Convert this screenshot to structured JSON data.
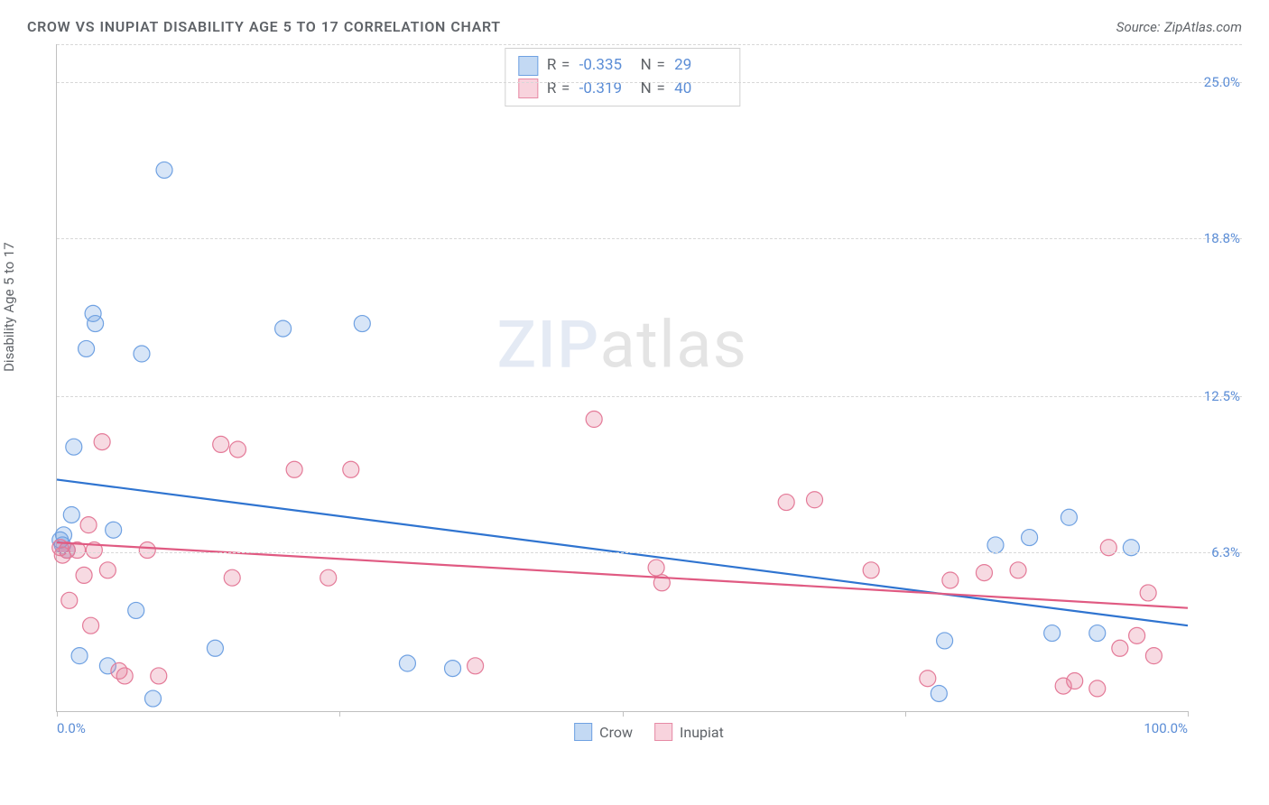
{
  "header": {
    "title": "CROW VS INUPIAT DISABILITY AGE 5 TO 17 CORRELATION CHART",
    "source": "Source: ZipAtlas.com"
  },
  "chart": {
    "type": "scatter",
    "yaxis_label": "Disability Age 5 to 17",
    "xlim": [
      0,
      100
    ],
    "ylim": [
      0,
      26.5
    ],
    "yticks": [
      {
        "v": 6.3,
        "label": "6.3%"
      },
      {
        "v": 12.5,
        "label": "12.5%"
      },
      {
        "v": 18.8,
        "label": "18.8%"
      },
      {
        "v": 25.0,
        "label": "25.0%"
      }
    ],
    "xticks_minor": [
      0,
      25,
      50,
      75,
      100
    ],
    "xticks_labeled": [
      {
        "v": 0,
        "label": "0.0%",
        "align": "left"
      },
      {
        "v": 100,
        "label": "100.0%",
        "align": "right"
      }
    ],
    "marker_radius": 9,
    "background_color": "#ffffff",
    "grid_color": "#d8d8d8",
    "axis_color": "#c0c0c0",
    "text_color": "#5f6368",
    "tick_label_color": "#5b8dd6"
  },
  "watermark": {
    "zip": "ZIP",
    "atlas": "atlas"
  },
  "legend_box": {
    "rows": [
      {
        "swatch_fill": "#c3d9f3",
        "swatch_stroke": "#6fa1e2",
        "r_label": "R =",
        "r_val": "-0.335",
        "n_label": "N =",
        "n_val": "29"
      },
      {
        "swatch_fill": "#f8d3dd",
        "swatch_stroke": "#e68aa5",
        "r_label": "R =",
        "r_val": "-0.319",
        "n_label": "N =",
        "n_val": "40"
      }
    ]
  },
  "bottom_legend": [
    {
      "swatch_fill": "#c3d9f3",
      "swatch_stroke": "#6fa1e2",
      "label": "Crow"
    },
    {
      "swatch_fill": "#f8d3dd",
      "swatch_stroke": "#e68aa5",
      "label": "Inupiat"
    }
  ],
  "series": [
    {
      "name": "Crow",
      "color_stroke": "#6fa1e2",
      "color_fill": "#6fa1e2",
      "trend_color": "#2f74d0",
      "trend": {
        "x1": 0,
        "y1": 9.2,
        "x2": 100,
        "y2": 3.4
      },
      "points": [
        {
          "x": 0.3,
          "y": 6.8
        },
        {
          "x": 0.5,
          "y": 6.6
        },
        {
          "x": 0.6,
          "y": 7.0
        },
        {
          "x": 0.9,
          "y": 6.4
        },
        {
          "x": 1.3,
          "y": 7.8
        },
        {
          "x": 1.5,
          "y": 10.5
        },
        {
          "x": 2.0,
          "y": 2.2
        },
        {
          "x": 3.2,
          "y": 15.8
        },
        {
          "x": 3.4,
          "y": 15.4
        },
        {
          "x": 2.6,
          "y": 14.4
        },
        {
          "x": 5.0,
          "y": 7.2
        },
        {
          "x": 4.5,
          "y": 1.8
        },
        {
          "x": 7.0,
          "y": 4.0
        },
        {
          "x": 7.5,
          "y": 14.2
        },
        {
          "x": 8.5,
          "y": 0.5
        },
        {
          "x": 9.5,
          "y": 21.5
        },
        {
          "x": 14.0,
          "y": 2.5
        },
        {
          "x": 20.0,
          "y": 15.2
        },
        {
          "x": 27.0,
          "y": 15.4
        },
        {
          "x": 31.0,
          "y": 1.9
        },
        {
          "x": 35.0,
          "y": 1.7
        },
        {
          "x": 78.0,
          "y": 0.7
        },
        {
          "x": 78.5,
          "y": 2.8
        },
        {
          "x": 83.0,
          "y": 6.6
        },
        {
          "x": 86.0,
          "y": 6.9
        },
        {
          "x": 88.0,
          "y": 3.1
        },
        {
          "x": 89.5,
          "y": 7.7
        },
        {
          "x": 92.0,
          "y": 3.1
        },
        {
          "x": 95.0,
          "y": 6.5
        }
      ]
    },
    {
      "name": "Inupiat",
      "color_stroke": "#e47a98",
      "color_fill": "#e47a98",
      "trend_color": "#e05a82",
      "trend": {
        "x1": 0,
        "y1": 6.7,
        "x2": 100,
        "y2": 4.1
      },
      "points": [
        {
          "x": 0.3,
          "y": 6.5
        },
        {
          "x": 0.5,
          "y": 6.2
        },
        {
          "x": 0.9,
          "y": 6.4
        },
        {
          "x": 1.1,
          "y": 4.4
        },
        {
          "x": 1.8,
          "y": 6.4
        },
        {
          "x": 2.4,
          "y": 5.4
        },
        {
          "x": 2.8,
          "y": 7.4
        },
        {
          "x": 3.0,
          "y": 3.4
        },
        {
          "x": 3.3,
          "y": 6.4
        },
        {
          "x": 4.0,
          "y": 10.7
        },
        {
          "x": 4.5,
          "y": 5.6
        },
        {
          "x": 5.5,
          "y": 1.6
        },
        {
          "x": 6.0,
          "y": 1.4
        },
        {
          "x": 8.0,
          "y": 6.4
        },
        {
          "x": 9.0,
          "y": 1.4
        },
        {
          "x": 14.5,
          "y": 10.6
        },
        {
          "x": 15.5,
          "y": 5.3
        },
        {
          "x": 16.0,
          "y": 10.4
        },
        {
          "x": 21.0,
          "y": 9.6
        },
        {
          "x": 24.0,
          "y": 5.3
        },
        {
          "x": 26.0,
          "y": 9.6
        },
        {
          "x": 37.0,
          "y": 1.8
        },
        {
          "x": 47.5,
          "y": 11.6
        },
        {
          "x": 53.0,
          "y": 5.7
        },
        {
          "x": 53.5,
          "y": 5.1
        },
        {
          "x": 64.5,
          "y": 8.3
        },
        {
          "x": 67.0,
          "y": 8.4
        },
        {
          "x": 72.0,
          "y": 5.6
        },
        {
          "x": 77.0,
          "y": 1.3
        },
        {
          "x": 79.0,
          "y": 5.2
        },
        {
          "x": 82.0,
          "y": 5.5
        },
        {
          "x": 85.0,
          "y": 5.6
        },
        {
          "x": 89.0,
          "y": 1.0
        },
        {
          "x": 90.0,
          "y": 1.2
        },
        {
          "x": 92.0,
          "y": 0.9
        },
        {
          "x": 93.0,
          "y": 6.5
        },
        {
          "x": 94.0,
          "y": 2.5
        },
        {
          "x": 95.5,
          "y": 3.0
        },
        {
          "x": 96.5,
          "y": 4.7
        },
        {
          "x": 97.0,
          "y": 2.2
        }
      ]
    }
  ]
}
